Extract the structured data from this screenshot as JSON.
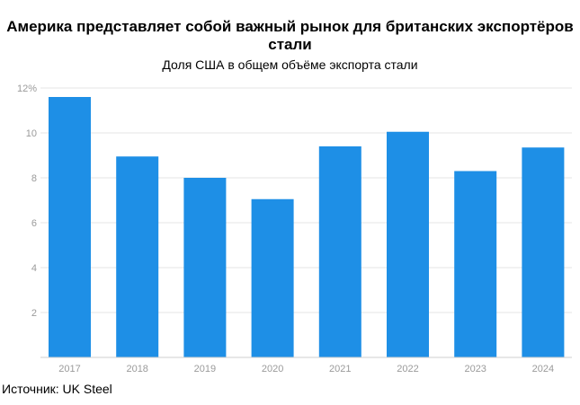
{
  "chart_data": {
    "type": "bar",
    "title": "Америка представляет собой важный рынок для британских экспортёров стали",
    "subtitle": "Доля США в общем объёме экспорта стали",
    "categories": [
      "2017",
      "2018",
      "2019",
      "2020",
      "2021",
      "2022",
      "2023",
      "2024"
    ],
    "values": [
      11.6,
      8.95,
      8.0,
      7.05,
      9.4,
      10.05,
      8.3,
      9.35
    ],
    "y_ticks": [
      "2",
      "4",
      "6",
      "8",
      "10",
      "12%"
    ],
    "ylim": [
      0,
      12
    ],
    "xlabel": "",
    "ylabel": "",
    "grid": true,
    "bar_color": "#1e8fe6"
  },
  "source": "Источник: UK Steel"
}
